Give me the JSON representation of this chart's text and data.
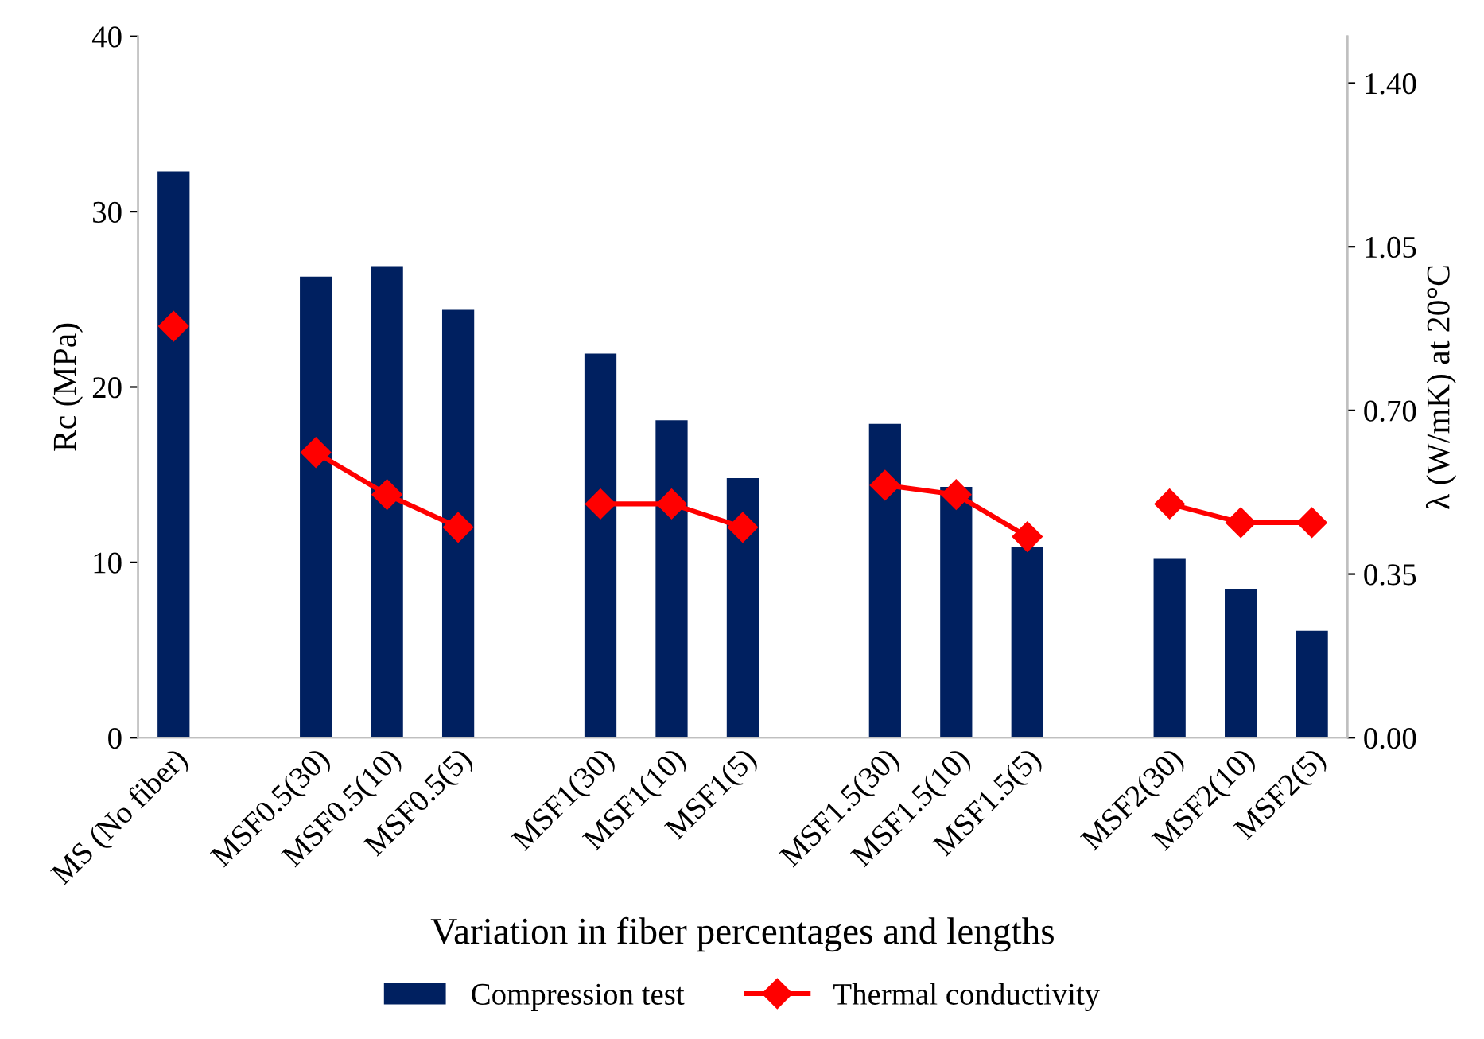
{
  "chart_data": {
    "type": "bar",
    "xlabel": "Variation in fiber percentages and lengths",
    "ylabel": "Rc (MPa)",
    "y2label": "λ (W/mK) at 20°C",
    "categories": [
      "MS (No fiber)",
      null,
      "MSF0.5(30)",
      "MSF0.5(10)",
      "MSF0.5(5)",
      null,
      "MSF1(30)",
      "MSF1(10)",
      "MSF1(5)",
      null,
      "MSF1.5(30)",
      "MSF1.5(10)",
      "MSF1.5(5)",
      null,
      "MSF2(30)",
      "MSF2(10)",
      "MSF2(5)"
    ],
    "series": [
      {
        "name": "Compression test",
        "color": "#002060",
        "values": [
          32.3,
          null,
          26.3,
          26.9,
          24.4,
          null,
          21.9,
          18.1,
          14.8,
          null,
          17.9,
          14.3,
          10.9,
          null,
          10.2,
          8.5,
          6.1
        ]
      },
      {
        "name": "Thermal conductivity",
        "type": "line",
        "axis": "y2",
        "color": "#ff0000",
        "marker": "diamond",
        "values": [
          0.88,
          null,
          0.61,
          0.52,
          0.45,
          null,
          0.5,
          0.5,
          0.45,
          null,
          0.54,
          0.52,
          0.43,
          null,
          0.5,
          0.46,
          0.46
        ]
      }
    ],
    "ylim": [
      0,
      40
    ],
    "yticks": [
      0,
      10,
      20,
      30,
      40
    ],
    "y2lim": [
      0,
      1.5
    ],
    "y2ticks": [
      {
        "value": 0,
        "label": "0.00"
      },
      {
        "value": 0.35,
        "label": "0.35"
      },
      {
        "value": 0.7,
        "label": "0.70"
      },
      {
        "value": 1.05,
        "label": "1.05"
      },
      {
        "value": 1.4,
        "label": "1.40"
      }
    ],
    "grid": false,
    "legend": "bottom"
  }
}
